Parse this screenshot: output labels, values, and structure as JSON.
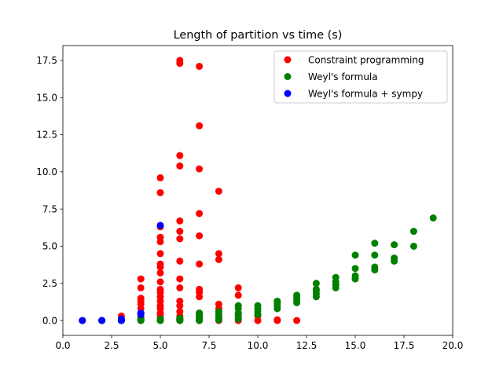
{
  "chart_data": {
    "type": "scatter",
    "title": "Length of partition vs time (s)",
    "xlabel": "",
    "ylabel": "",
    "xlim": [
      0,
      20
    ],
    "ylim": [
      -1.0,
      18.5
    ],
    "xticks": [
      0.0,
      2.5,
      5.0,
      7.5,
      10.0,
      12.5,
      15.0,
      17.5,
      20.0
    ],
    "xtick_labels": [
      "0.0",
      "2.5",
      "5.0",
      "7.5",
      "10.0",
      "12.5",
      "15.0",
      "17.5",
      "20.0"
    ],
    "yticks": [
      0.0,
      2.5,
      5.0,
      7.5,
      10.0,
      12.5,
      15.0,
      17.5
    ],
    "ytick_labels": [
      "0.0",
      "2.5",
      "5.0",
      "7.5",
      "10.0",
      "12.5",
      "15.0",
      "17.5"
    ],
    "grid": false,
    "legend_position": "top-right",
    "series": [
      {
        "name": "Constraint programming",
        "color": "#ff0000",
        "points": [
          [
            1,
            0.0
          ],
          [
            2,
            0.0
          ],
          [
            3,
            0.0
          ],
          [
            3,
            0.05
          ],
          [
            3,
            0.3
          ],
          [
            4,
            0.0
          ],
          [
            4,
            0.05
          ],
          [
            4,
            0.2
          ],
          [
            4,
            0.5
          ],
          [
            4,
            0.8
          ],
          [
            4,
            1.1
          ],
          [
            4,
            1.3
          ],
          [
            4,
            1.5
          ],
          [
            4,
            2.2
          ],
          [
            4,
            2.8
          ],
          [
            5,
            0.0
          ],
          [
            5,
            0.1
          ],
          [
            5,
            0.3
          ],
          [
            5,
            0.5
          ],
          [
            5,
            0.8
          ],
          [
            5,
            1.0
          ],
          [
            5,
            1.3
          ],
          [
            5,
            1.6
          ],
          [
            5,
            1.9
          ],
          [
            5,
            2.1
          ],
          [
            5,
            2.6
          ],
          [
            5,
            3.2
          ],
          [
            5,
            3.6
          ],
          [
            5,
            3.8
          ],
          [
            5,
            4.5
          ],
          [
            5,
            5.3
          ],
          [
            5,
            5.6
          ],
          [
            5,
            6.3
          ],
          [
            5,
            8.6
          ],
          [
            5,
            9.6
          ],
          [
            6,
            0.0
          ],
          [
            6,
            0.1
          ],
          [
            6,
            0.3
          ],
          [
            6,
            0.6
          ],
          [
            6,
            1.0
          ],
          [
            6,
            1.3
          ],
          [
            6,
            2.2
          ],
          [
            6,
            2.8
          ],
          [
            6,
            4.0
          ],
          [
            6,
            5.5
          ],
          [
            6,
            6.0
          ],
          [
            6,
            6.7
          ],
          [
            6,
            10.4
          ],
          [
            6,
            11.1
          ],
          [
            6,
            17.3
          ],
          [
            6,
            17.5
          ],
          [
            7,
            0.0
          ],
          [
            7,
            0.1
          ],
          [
            7,
            0.3
          ],
          [
            7,
            0.5
          ],
          [
            7,
            1.6
          ],
          [
            7,
            1.9
          ],
          [
            7,
            2.1
          ],
          [
            7,
            3.8
          ],
          [
            7,
            5.7
          ],
          [
            7,
            7.2
          ],
          [
            7,
            10.2
          ],
          [
            7,
            13.1
          ],
          [
            7,
            17.1
          ],
          [
            8,
            0.0
          ],
          [
            8,
            0.1
          ],
          [
            8,
            0.8
          ],
          [
            8,
            1.1
          ],
          [
            8,
            4.1
          ],
          [
            8,
            4.5
          ],
          [
            8,
            8.7
          ],
          [
            9,
            0.0
          ],
          [
            9,
            0.4
          ],
          [
            9,
            1.7
          ],
          [
            9,
            2.2
          ],
          [
            10,
            0.0
          ],
          [
            10,
            0.3
          ],
          [
            11,
            0.0
          ],
          [
            11,
            0.05
          ],
          [
            12,
            0.0
          ]
        ]
      },
      {
        "name": "Weyl's formula",
        "color": "#008000",
        "points": [
          [
            1,
            0.0
          ],
          [
            2,
            0.0
          ],
          [
            3,
            0.0
          ],
          [
            4,
            0.0
          ],
          [
            4,
            0.05
          ],
          [
            4,
            0.1
          ],
          [
            5,
            0.0
          ],
          [
            5,
            0.05
          ],
          [
            5,
            0.1
          ],
          [
            6,
            0.0
          ],
          [
            6,
            0.05
          ],
          [
            6,
            0.1
          ],
          [
            6,
            0.15
          ],
          [
            7,
            0.0
          ],
          [
            7,
            0.1
          ],
          [
            7,
            0.2
          ],
          [
            7,
            0.35
          ],
          [
            7,
            0.5
          ],
          [
            8,
            0.05
          ],
          [
            8,
            0.2
          ],
          [
            8,
            0.4
          ],
          [
            8,
            0.6
          ],
          [
            9,
            0.1
          ],
          [
            9,
            0.3
          ],
          [
            9,
            0.5
          ],
          [
            9,
            0.8
          ],
          [
            9,
            1.0
          ],
          [
            10,
            0.4
          ],
          [
            10,
            0.6
          ],
          [
            10,
            0.8
          ],
          [
            10,
            1.0
          ],
          [
            11,
            0.8
          ],
          [
            11,
            1.0
          ],
          [
            11,
            1.2
          ],
          [
            11,
            1.3
          ],
          [
            12,
            1.2
          ],
          [
            12,
            1.4
          ],
          [
            12,
            1.6
          ],
          [
            12,
            1.7
          ],
          [
            13,
            1.6
          ],
          [
            13,
            1.8
          ],
          [
            13,
            2.0
          ],
          [
            13,
            2.1
          ],
          [
            13,
            2.5
          ],
          [
            14,
            2.2
          ],
          [
            14,
            2.4
          ],
          [
            14,
            2.6
          ],
          [
            14,
            2.9
          ],
          [
            15,
            2.8
          ],
          [
            15,
            3.0
          ],
          [
            15,
            3.5
          ],
          [
            15,
            4.4
          ],
          [
            16,
            3.4
          ],
          [
            16,
            3.6
          ],
          [
            16,
            4.4
          ],
          [
            16,
            5.2
          ],
          [
            17,
            4.0
          ],
          [
            17,
            4.2
          ],
          [
            17,
            5.1
          ],
          [
            18,
            5.0
          ],
          [
            18,
            6.0
          ],
          [
            19,
            6.9
          ]
        ]
      },
      {
        "name": "Weyl's formula + sympy",
        "color": "#0000ff",
        "points": [
          [
            1,
            0.0
          ],
          [
            2,
            0.0
          ],
          [
            3,
            0.0
          ],
          [
            3,
            0.1
          ],
          [
            4,
            0.4
          ],
          [
            4,
            0.5
          ],
          [
            5,
            6.4
          ]
        ]
      }
    ]
  }
}
